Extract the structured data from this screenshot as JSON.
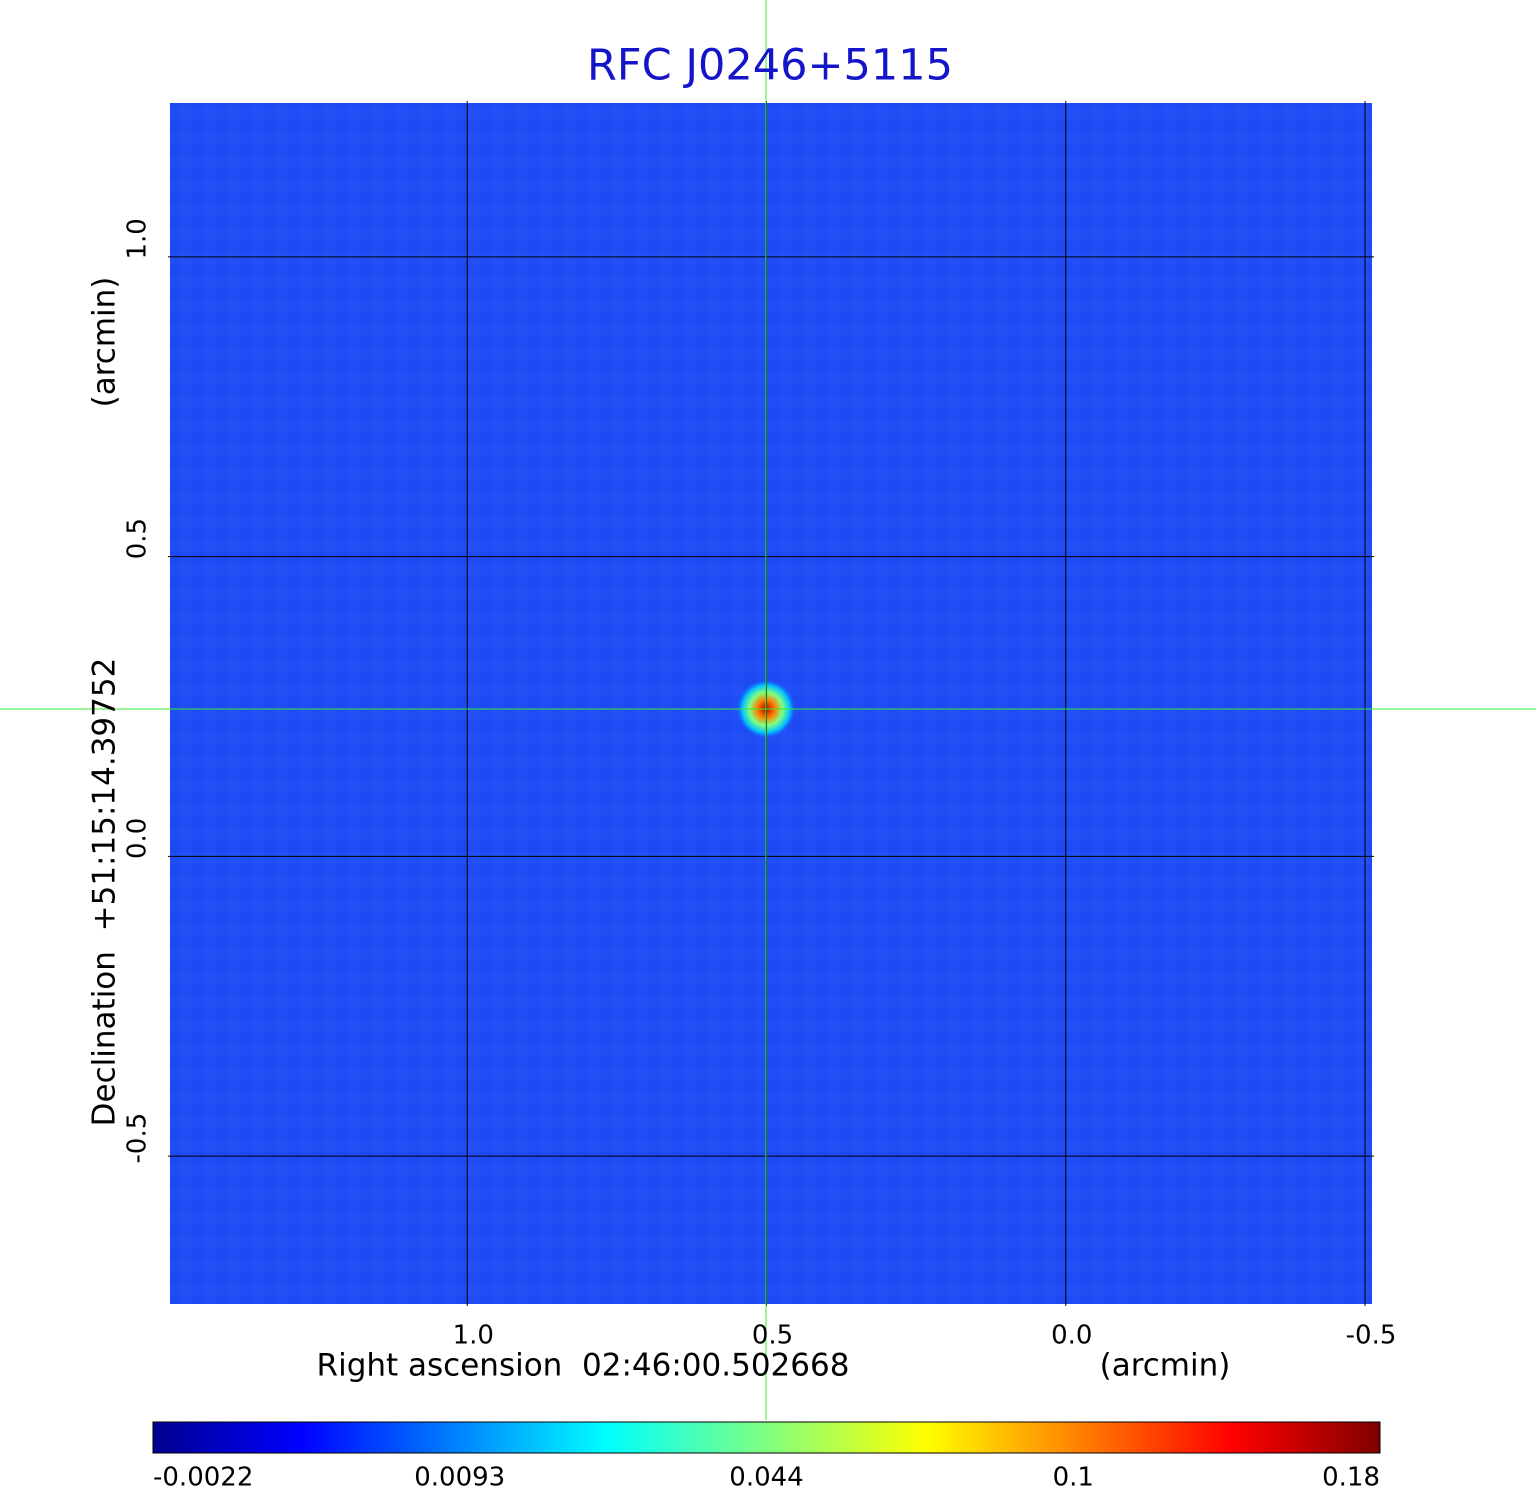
{
  "chart_data": {
    "type": "image",
    "title": "RFC J0246+5115",
    "x_label": "Right ascension  02:46:00.502668",
    "x_unit": "(arcmin)",
    "y_label": "Declination  +51:15:14.39752",
    "y_unit": "(arcmin)",
    "xlim": [
      1.5,
      -0.515
    ],
    "ylim": [
      -0.75,
      1.26
    ],
    "xticks": [
      {
        "value": 1.0,
        "label": "1.0"
      },
      0.5,
      {
        "value": 0.0,
        "label": "0.0"
      },
      -0.5
    ],
    "yticks": [
      {
        "value": 1.0,
        "label": "1.0"
      },
      0.5,
      {
        "value": 0.0,
        "label": "0.0"
      },
      -0.5
    ],
    "grid": true,
    "colorbar_ticks": [
      -0.0022,
      0.0093,
      0.044,
      0.1,
      0.18
    ]
  }
}
